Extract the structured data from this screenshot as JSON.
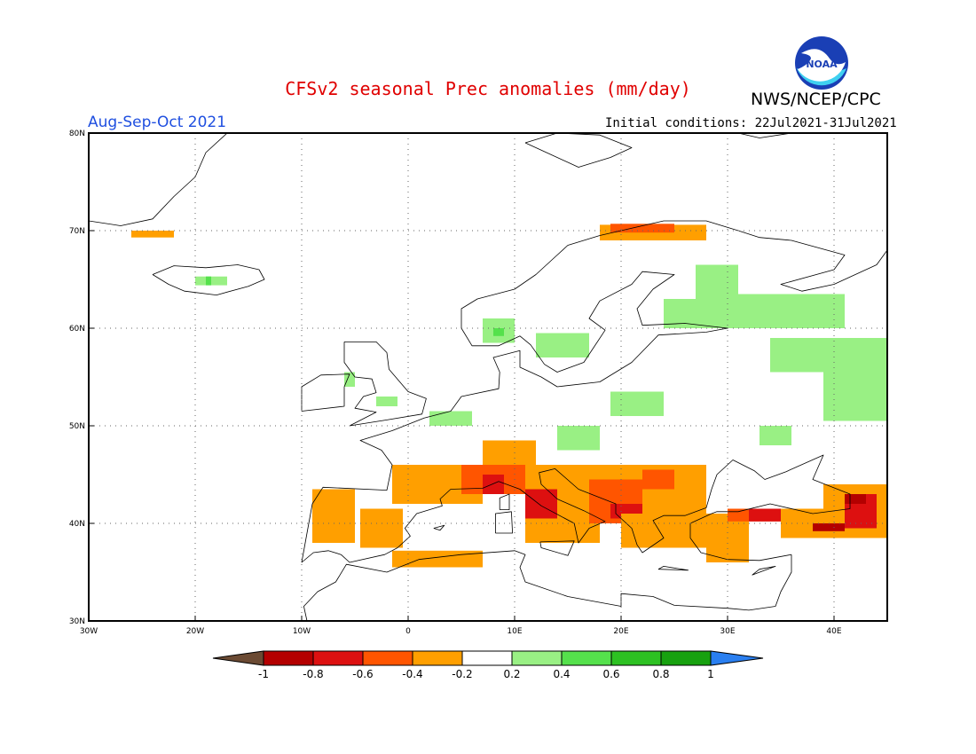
{
  "header": {
    "title": "CFSv2 seasonal Prec anomalies (mm/day)",
    "agency": "NWS/NCEP/CPC",
    "logo_text": "NOAA",
    "period": "Aug-Sep-Oct 2021",
    "initial_conditions": "Initial conditions: 22Jul2021-31Jul2021"
  },
  "map": {
    "lon_range": [
      -30,
      45
    ],
    "lat_range": [
      30,
      80
    ],
    "lat_labels": [
      {
        "lat": 30,
        "label": "30N"
      },
      {
        "lat": 40,
        "label": "40N"
      },
      {
        "lat": 50,
        "label": "50N"
      },
      {
        "lat": 60,
        "label": "60N"
      },
      {
        "lat": 70,
        "label": "70N"
      },
      {
        "lat": 80,
        "label": "80N"
      }
    ],
    "lon_labels": [
      {
        "lon": -30,
        "label": "30W"
      },
      {
        "lon": -20,
        "label": "20W"
      },
      {
        "lon": -10,
        "label": "10W"
      },
      {
        "lon": 0,
        "label": "0"
      },
      {
        "lon": 10,
        "label": "10E"
      },
      {
        "lon": 20,
        "label": "20E"
      },
      {
        "lon": 30,
        "label": "30E"
      },
      {
        "lon": 40,
        "label": "40E"
      }
    ],
    "grid": true,
    "anomaly_regions": [
      {
        "level": -0.3,
        "lon": [
          -26,
          -22
        ],
        "lat": [
          69.3,
          70.0
        ]
      },
      {
        "level": -0.3,
        "lon": [
          18,
          28
        ],
        "lat": [
          69.0,
          70.6
        ]
      },
      {
        "level": -0.5,
        "lon": [
          19,
          25
        ],
        "lat": [
          69.8,
          70.7
        ]
      },
      {
        "level": 0.3,
        "lon": [
          -20,
          -17
        ],
        "lat": [
          64.4,
          65.3
        ]
      },
      {
        "level": 0.5,
        "lon": [
          -19,
          -18.5
        ],
        "lat": [
          64.4,
          65.3
        ]
      },
      {
        "level": 0.3,
        "lon": [
          7,
          10
        ],
        "lat": [
          58.5,
          61.0
        ]
      },
      {
        "level": 0.5,
        "lon": [
          8,
          9
        ],
        "lat": [
          59.2,
          60.0
        ]
      },
      {
        "level": 0.3,
        "lon": [
          12,
          17
        ],
        "lat": [
          57.0,
          59.5
        ]
      },
      {
        "level": 0.3,
        "lon": [
          24,
          31
        ],
        "lat": [
          60.0,
          63.0
        ]
      },
      {
        "level": 0.3,
        "lon": [
          27,
          31
        ],
        "lat": [
          63.0,
          66.5
        ]
      },
      {
        "level": 0.3,
        "lon": [
          31,
          41
        ],
        "lat": [
          60.0,
          63.5
        ]
      },
      {
        "level": 0.3,
        "lon": [
          34,
          45
        ],
        "lat": [
          55.5,
          59.0
        ]
      },
      {
        "level": 0.3,
        "lon": [
          39,
          45
        ],
        "lat": [
          50.5,
          55.5
        ]
      },
      {
        "level": 0.3,
        "lon": [
          19,
          24
        ],
        "lat": [
          51.0,
          53.5
        ]
      },
      {
        "level": 0.3,
        "lon": [
          14,
          18
        ],
        "lat": [
          47.5,
          50.0
        ]
      },
      {
        "level": 0.3,
        "lon": [
          2,
          6
        ],
        "lat": [
          50.0,
          51.5
        ]
      },
      {
        "level": 0.3,
        "lon": [
          -3,
          -1
        ],
        "lat": [
          52.0,
          53.0
        ]
      },
      {
        "level": 0.3,
        "lon": [
          -6,
          -5
        ],
        "lat": [
          54.0,
          55.5
        ]
      },
      {
        "level": 0.3,
        "lon": [
          33,
          36
        ],
        "lat": [
          48.0,
          50.0
        ]
      },
      {
        "level": -0.3,
        "lon": [
          -9,
          -5
        ],
        "lat": [
          38.0,
          43.5
        ]
      },
      {
        "level": -0.3,
        "lon": [
          -1.5,
          7
        ],
        "lat": [
          42.0,
          46.0
        ]
      },
      {
        "level": -0.3,
        "lon": [
          -4.5,
          -0.5
        ],
        "lat": [
          37.5,
          41.5
        ]
      },
      {
        "level": -0.3,
        "lon": [
          -1.5,
          7
        ],
        "lat": [
          35.5,
          37.2
        ]
      },
      {
        "level": -0.3,
        "lon": [
          7,
          12
        ],
        "lat": [
          45.5,
          48.5
        ]
      },
      {
        "level": -0.5,
        "lon": [
          5,
          11
        ],
        "lat": [
          43.0,
          46.0
        ]
      },
      {
        "level": -0.7,
        "lon": [
          7,
          9
        ],
        "lat": [
          43.0,
          45.0
        ]
      },
      {
        "level": -0.3,
        "lon": [
          11,
          18
        ],
        "lat": [
          38.0,
          46.0
        ]
      },
      {
        "level": -0.7,
        "lon": [
          11,
          14.5
        ],
        "lat": [
          40.5,
          43.5
        ]
      },
      {
        "level": -0.3,
        "lon": [
          14,
          28
        ],
        "lat": [
          40.0,
          46.0
        ]
      },
      {
        "level": -0.5,
        "lon": [
          17,
          22
        ],
        "lat": [
          40.0,
          44.5
        ]
      },
      {
        "level": -0.7,
        "lon": [
          19,
          22
        ],
        "lat": [
          40.5,
          42.0
        ]
      },
      {
        "level": -0.3,
        "lon": [
          20,
          28
        ],
        "lat": [
          37.5,
          41.0
        ]
      },
      {
        "level": -0.5,
        "lon": [
          22,
          25
        ],
        "lat": [
          43.5,
          45.5
        ]
      },
      {
        "level": -0.3,
        "lon": [
          28,
          32
        ],
        "lat": [
          36.0,
          41.0
        ]
      },
      {
        "level": -0.5,
        "lon": [
          30,
          42
        ],
        "lat": [
          40.2,
          41.5
        ]
      },
      {
        "level": -0.7,
        "lon": [
          32,
          35
        ],
        "lat": [
          40.2,
          41.5
        ]
      },
      {
        "level": -0.3,
        "lon": [
          35,
          45
        ],
        "lat": [
          38.5,
          41.5
        ]
      },
      {
        "level": -0.3,
        "lon": [
          39,
          45
        ],
        "lat": [
          41.0,
          44.0
        ]
      },
      {
        "level": -0.7,
        "lon": [
          41,
          44
        ],
        "lat": [
          39.5,
          43.0
        ]
      },
      {
        "level": -0.9,
        "lon": [
          38,
          41
        ],
        "lat": [
          39.2,
          40.0
        ]
      },
      {
        "level": -0.9,
        "lon": [
          41,
          43
        ],
        "lat": [
          42.0,
          43.0
        ]
      }
    ]
  },
  "colorbar": {
    "ticks": [
      "-1",
      "-0.8",
      "-0.6",
      "-0.4",
      "-0.2",
      "0.2",
      "0.4",
      "0.6",
      "0.8",
      "1"
    ],
    "colors": {
      "below_-1": "#6b4a33",
      "-1_-0.8": "#b40000",
      "-0.8_-0.6": "#dd1010",
      "-0.6_-0.4": "#ff5500",
      "-0.4_-0.2": "#ff9f00",
      "-0.2_0.2": "#ffffff",
      "0.2_0.4": "#99f084",
      "0.4_0.6": "#55e14c",
      "0.6_0.8": "#2dc122",
      "0.8_1": "#17a10f",
      "above_1": "#2a7ff0"
    }
  }
}
